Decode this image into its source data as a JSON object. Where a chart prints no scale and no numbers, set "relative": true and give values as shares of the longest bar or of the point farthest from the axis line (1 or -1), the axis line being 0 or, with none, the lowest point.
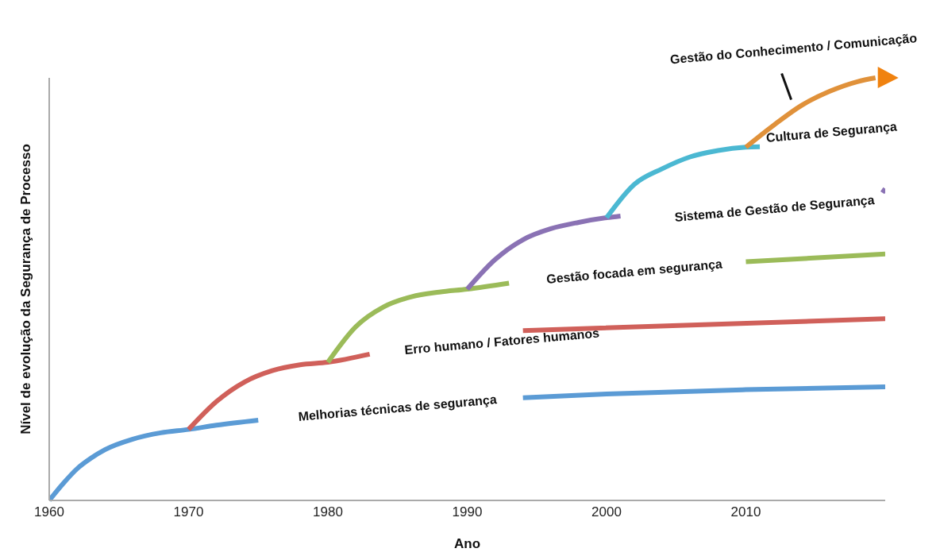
{
  "chart_data": {
    "type": "line",
    "relative": true,
    "xlabel": "Ano",
    "ylabel": "Nível de evolução da Segurança de Processo",
    "xlim": [
      1960,
      2020
    ],
    "xticks": [
      1960,
      1970,
      1980,
      1990,
      2000,
      2010
    ],
    "marker": "none",
    "line_style": "solid",
    "series": [
      {
        "name": "Melhorias técnicas de segurança",
        "color": "#5b9bd5",
        "x": [
          1960,
          1961,
          1962,
          1963,
          1964,
          1966,
          1968,
          1970,
          1972,
          1975,
          1985,
          1994,
          2000,
          2010,
          2020
        ],
        "values": [
          0,
          0.04,
          0.075,
          0.1,
          0.12,
          0.145,
          0.16,
          0.168,
          0.178,
          0.19,
          null,
          0.243,
          0.252,
          0.262,
          0.269
        ]
      },
      {
        "name": "Erro humano / Fatores humanos",
        "color": "#d0605a",
        "x": [
          1970,
          1972,
          1974,
          1976,
          1978,
          1980,
          1983,
          1992.5,
          1994,
          2020
        ],
        "values": [
          0.168,
          0.234,
          0.28,
          0.307,
          0.321,
          0.327,
          0.346,
          null,
          0.402,
          0.43
        ]
      },
      {
        "name": "Gestão focada em segurança",
        "color": "#9bbb59",
        "x": [
          1980,
          1982,
          1984,
          1986,
          1988,
          1990,
          1993,
          2002,
          2010,
          2020
        ],
        "values": [
          0.327,
          0.411,
          0.458,
          0.482,
          0.493,
          0.5,
          0.514,
          null,
          0.565,
          0.583
        ]
      },
      {
        "name": "Sistema de Gestão de Segurança",
        "color": "#8a72b4",
        "x": [
          1990,
          1992,
          1994,
          1996,
          1998,
          2000,
          2001,
          2011,
          2019.8,
          2020
        ],
        "values": [
          0.5,
          0.57,
          0.617,
          0.643,
          0.658,
          0.669,
          0.673,
          null,
          0.728,
          0.738
        ]
      },
      {
        "name": "Cultura de Segurança",
        "color": "#4bb8d2",
        "x": [
          2000,
          2002,
          2004,
          2006,
          2008,
          2010,
          2011
        ],
        "values": [
          0.669,
          0.748,
          0.785,
          0.813,
          0.828,
          0.836,
          0.837
        ]
      },
      {
        "name": "Gestão do Conhecimento / Comunicação",
        "color": "#e0913a",
        "x": [
          2010,
          2012,
          2014,
          2016,
          2018,
          2019.3
        ],
        "values": [
          0.836,
          0.888,
          0.935,
          0.968,
          0.991,
          1
        ]
      }
    ]
  }
}
